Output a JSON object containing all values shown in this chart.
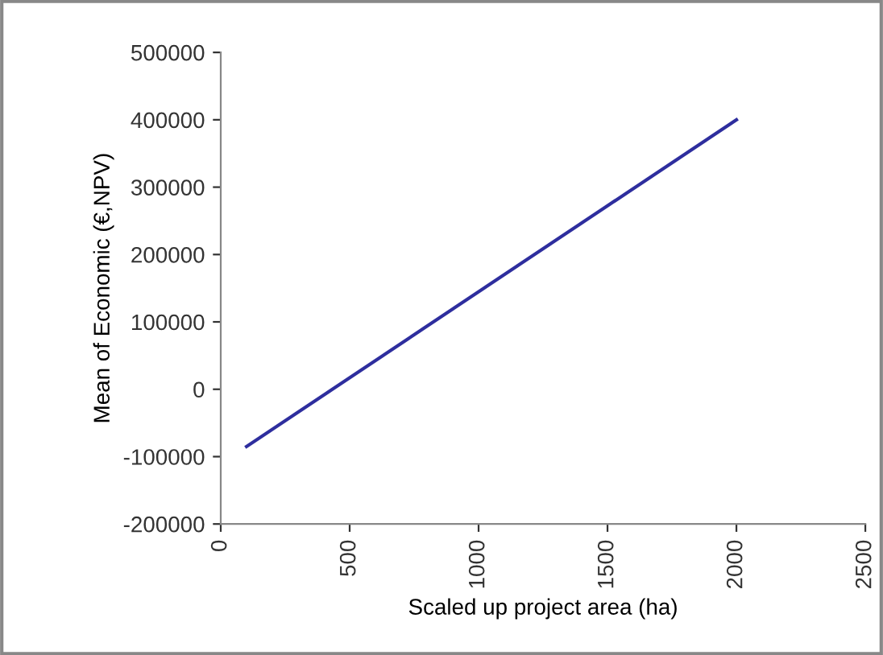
{
  "chart_data": {
    "type": "line",
    "xlabel": "Scaled up project area (ha)",
    "ylabel": "Mean of Economic (€,NPV)",
    "x": [
      100,
      2000
    ],
    "series": [
      {
        "color": "#2e2e9e",
        "values": [
          -85000,
          400000
        ]
      }
    ],
    "xlim": [
      0,
      2500
    ],
    "xticks": [
      0,
      500,
      1000,
      1500,
      2000,
      2500
    ],
    "ylim": [
      -200000,
      500000
    ],
    "yticks": [
      -200000,
      -100000,
      0,
      100000,
      200000,
      300000,
      400000,
      500000
    ],
    "grid": false,
    "legend": false,
    "marker": "none",
    "line_style": "solid"
  }
}
